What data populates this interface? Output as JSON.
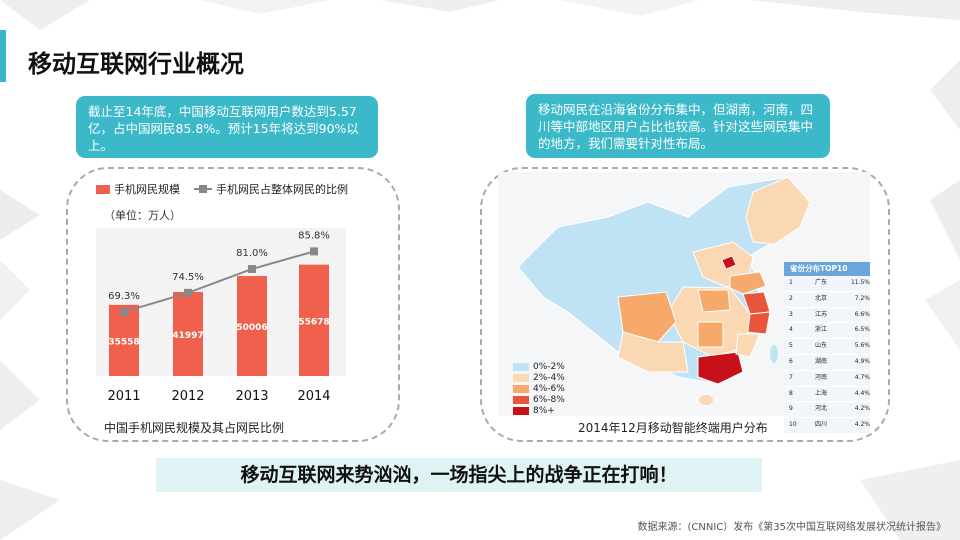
{
  "page": {
    "title": "移动互联网行业概况",
    "slogan": "移动互联网来势汹汹，一场指尖上的战争正在打响！",
    "source": "数据来源：(CNNIC）发布《第35次中国互联网络发展状况统计报告》"
  },
  "callouts": {
    "left": "截止至14年底，中国移动互联网用户数达到5.57亿，占中国网民85.8%。预计15年将达到90%以上。",
    "right": "移动网民在沿海省份分布集中，但湖南，河南，四川等中部地区用户占比也较高。针对这些网民集中的地方，我们需要针对性布局。"
  },
  "colors": {
    "accent": "#3bb9c9",
    "bar": "#f0604c",
    "line": "#888888"
  },
  "chart_data": [
    {
      "type": "bar",
      "title": "中国手机网民规模及其占网民比例",
      "unit_label": "（单位：万人）",
      "categories": [
        "2011",
        "2012",
        "2013",
        "2014"
      ],
      "series": [
        {
          "name": "手机网民规模",
          "values": [
            35558,
            41997,
            50006,
            55678
          ],
          "labels": [
            "35558",
            "41997",
            "50006",
            "55678"
          ]
        },
        {
          "name": "手机网民占整体网民的比例",
          "type": "line",
          "values": [
            69.3,
            74.5,
            81.0,
            85.8
          ],
          "labels": [
            "69.3%",
            "74.5%",
            "81.0%",
            "85.8%"
          ]
        }
      ],
      "legend_position": "top-left",
      "grid": false
    },
    {
      "type": "map",
      "title": "2014年12月移动智能终端用户分布",
      "legend": [
        {
          "label": "0%-2%",
          "color": "#bfe3f5"
        },
        {
          "label": "2%-4%",
          "color": "#fbd8b4"
        },
        {
          "label": "4%-6%",
          "color": "#f6a96a"
        },
        {
          "label": "6%-8%",
          "color": "#e8553a"
        },
        {
          "label": "8%+",
          "color": "#c8101a"
        }
      ],
      "top10": {
        "title": "省份分布TOP10",
        "rows": [
          {
            "rank": "1",
            "province": "广东",
            "value": "11.5%"
          },
          {
            "rank": "2",
            "province": "北京",
            "value": "7.2%"
          },
          {
            "rank": "3",
            "province": "江苏",
            "value": "6.6%"
          },
          {
            "rank": "4",
            "province": "浙江",
            "value": "6.5%"
          },
          {
            "rank": "5",
            "province": "山东",
            "value": "5.6%"
          },
          {
            "rank": "6",
            "province": "湖南",
            "value": "4.9%"
          },
          {
            "rank": "7",
            "province": "河南",
            "value": "4.7%"
          },
          {
            "rank": "8",
            "province": "上海",
            "value": "4.4%"
          },
          {
            "rank": "9",
            "province": "河北",
            "value": "4.2%"
          },
          {
            "rank": "10",
            "province": "四川",
            "value": "4.2%"
          }
        ]
      }
    }
  ]
}
